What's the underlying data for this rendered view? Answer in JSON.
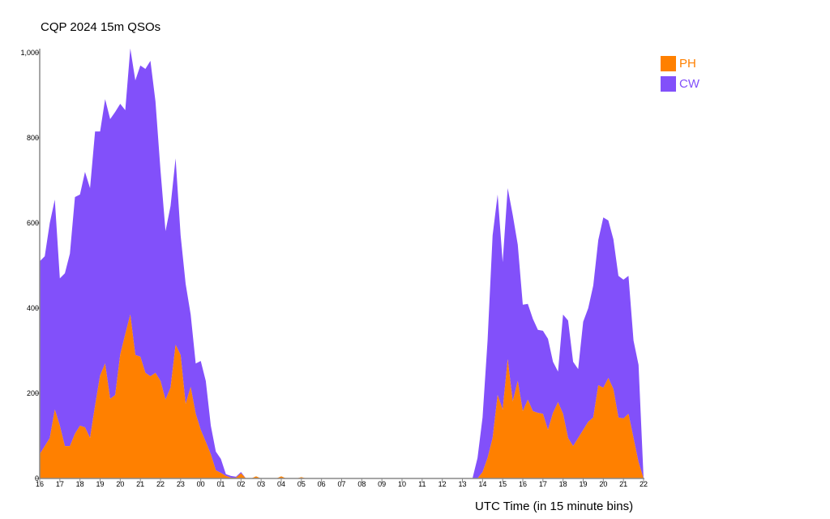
{
  "chart_data": {
    "type": "area",
    "stacked": true,
    "title": "CQP 2024 15m QSOs",
    "xlabel": "UTC Time (in 15 minute bins)",
    "ylabel": "",
    "ylim": [
      0,
      1000
    ],
    "yticks": [
      0,
      200,
      400,
      600,
      800,
      1000
    ],
    "ytick_labels": [
      "0",
      "200",
      "400",
      "600",
      "800",
      "1,000"
    ],
    "xtick_labels": [
      "16",
      "17",
      "18",
      "19",
      "20",
      "21",
      "22",
      "23",
      "00",
      "01",
      "02",
      "03",
      "04",
      "05",
      "06",
      "07",
      "08",
      "09",
      "10",
      "11",
      "12",
      "13",
      "14",
      "15",
      "16",
      "17",
      "18",
      "19",
      "20",
      "21",
      "22"
    ],
    "bins_per_tick": 4,
    "legend_position": "top-right",
    "colors": {
      "PH": "#ff8000",
      "CW": "#8250fa"
    },
    "series": [
      {
        "name": "PH",
        "values": [
          57,
          76,
          95,
          162,
          124,
          76,
          76,
          105,
          124,
          120,
          95,
          171,
          242,
          270,
          187,
          196,
          291,
          339,
          385,
          290,
          286,
          248,
          240,
          248,
          229,
          185,
          213,
          314,
          290,
          175,
          215,
          152,
          114,
          86,
          57,
          19,
          13,
          6,
          2,
          2,
          12,
          0,
          0,
          5,
          0,
          0,
          0,
          0,
          5,
          0,
          0,
          0,
          3,
          0,
          0,
          0,
          0,
          0,
          0,
          0,
          0,
          0,
          0,
          0,
          0,
          0,
          0,
          0,
          0,
          0,
          0,
          0,
          0,
          0,
          0,
          0,
          0,
          0,
          0,
          0,
          0,
          0,
          0,
          0,
          0,
          0,
          0,
          0,
          15,
          48,
          95,
          196,
          162,
          280,
          181,
          229,
          158,
          185,
          158,
          154,
          152,
          114,
          154,
          179,
          152,
          95,
          76,
          95,
          114,
          133,
          143,
          219,
          213,
          236,
          210,
          143,
          141,
          152,
          95,
          38,
          0
        ]
      },
      {
        "name": "CW",
        "values": [
          453,
          446,
          505,
          493,
          346,
          406,
          452,
          556,
          543,
          600,
          587,
          644,
          573,
          621,
          657,
          665,
          589,
          526,
          625,
          645,
          684,
          714,
          741,
          638,
          495,
          396,
          427,
          438,
          281,
          282,
          170,
          118,
          162,
          143,
          67,
          44,
          33,
          4,
          4,
          2,
          3,
          0,
          0,
          0,
          0,
          0,
          0,
          0,
          0,
          0,
          0,
          0,
          0,
          0,
          0,
          0,
          0,
          0,
          0,
          0,
          0,
          0,
          0,
          0,
          0,
          0,
          0,
          0,
          0,
          0,
          0,
          0,
          0,
          0,
          0,
          0,
          0,
          0,
          0,
          0,
          0,
          0,
          0,
          0,
          0,
          0,
          0,
          48,
          128,
          276,
          476,
          471,
          346,
          402,
          438,
          320,
          250,
          225,
          217,
          195,
          195,
          214,
          120,
          72,
          233,
          276,
          198,
          162,
          254,
          267,
          310,
          341,
          400,
          370,
          352,
          333,
          326,
          324,
          229,
          229,
          0
        ]
      }
    ]
  }
}
